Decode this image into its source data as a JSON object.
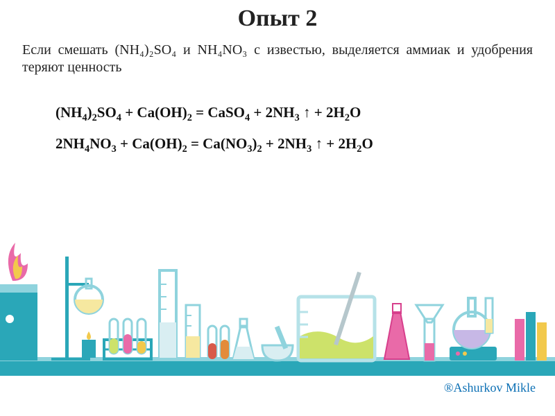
{
  "palette": {
    "bg": "#ffffff",
    "text": "#222222",
    "accent_blue": "#0b6fb4",
    "bench_teal": "#2aa7b8",
    "bench_light": "#8fd3dd",
    "bench_outline": "#b6e2e8",
    "pale_glass": "#d9eef2",
    "pink": "#e96aa8",
    "magenta": "#d73f8c",
    "lime": "#cde26a",
    "yellow": "#f2c94c",
    "pale_yel": "#f6e8a0",
    "red": "#d85a4a",
    "orange": "#e38b3a",
    "lav": "#c7b8e6",
    "grey": "#b6c7cc"
  },
  "title": "Опыт 2",
  "intro": "Если смешать (NH₄)₂SO₄ и NH₄NO₃ с известью, выделяется аммиак и удобрения теряют ценность",
  "equation1_html": "(NH<sub>4</sub>)<sub>2</sub>SO<sub>4</sub> + Ca(OH)<sub>2</sub> = CaSO<sub>4</sub> + 2NH<sub>3</sub> ↑  + 2H<sub>2</sub>O",
  "equation2_html": "2NH<sub>4</sub>NO<sub>3</sub> + Ca(OH)<sub>2</sub> = Ca(NO<sub>3</sub>)<sub>2</sub> + 2NH<sub>3</sub> ↑  + 2H<sub>2</sub>O",
  "credit": "®Ashurkov Mikle",
  "labbench": {
    "type": "infographic",
    "items": [
      "burner-stand",
      "ring-stand-with-flask",
      "test-tube-rack",
      "graduated-cylinder-tall",
      "graduated-cylinder-mid",
      "two-small-tubes",
      "erlenmeyer-small",
      "mortar-pestle",
      "large-beaker-with-rod",
      "erlenmeyer-pink",
      "funnel-tube",
      "round-bottom-on-hotplate",
      "books"
    ]
  }
}
